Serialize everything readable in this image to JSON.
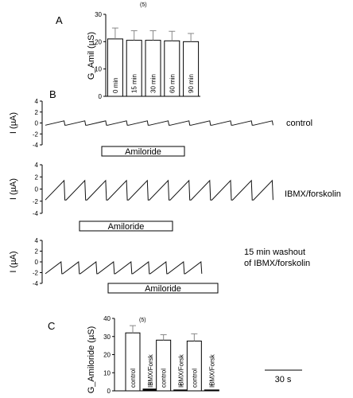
{
  "panels": {
    "a": "A",
    "b": "B",
    "c": "C"
  },
  "chart_data": [
    {
      "id": "A",
      "type": "bar",
      "ylabel": "G_Amil (µS)",
      "ylim": [
        0,
        30
      ],
      "yticks": [
        0,
        10,
        20,
        30
      ],
      "n_label": "(5)",
      "categories": [
        "0 min",
        "15 min",
        "30 min",
        "60 min",
        "90 min"
      ],
      "values": [
        21,
        20.5,
        20.5,
        20.3,
        20
      ],
      "errors": [
        4,
        3.5,
        3.5,
        3.5,
        3
      ]
    },
    {
      "id": "B",
      "type": "line",
      "ylabel": "I (µA)",
      "ylim": [
        -4,
        4
      ],
      "yticks": [
        -4,
        -2,
        0,
        2,
        4
      ],
      "scale_bar": "30 s",
      "traces": [
        {
          "condition": "control",
          "amiloride_label": "Amiloride",
          "pulse_amp": 0.8,
          "base": -0.4,
          "cycles": 11
        },
        {
          "condition": "IBMX/forskolin",
          "amiloride_label": "Amiloride",
          "pulse_amp": 3.2,
          "base": -1.8,
          "cycles": 11
        },
        {
          "condition": "15 min washout of IBMX/forskolin",
          "amiloride_label": "Amiloride",
          "pulse_amp": 2.2,
          "base": -2.2,
          "cycles": 9
        }
      ]
    },
    {
      "id": "C",
      "type": "bar",
      "ylabel": "G_Amiloride (µS)",
      "ylim": [
        0,
        40
      ],
      "yticks": [
        0,
        10,
        20,
        30,
        40
      ],
      "n_label": "(5)",
      "series": [
        {
          "name": "control",
          "values": [
            32,
            28,
            27.5
          ],
          "errors": [
            4,
            3,
            4
          ],
          "fill": "#ffffff"
        },
        {
          "name": "IBMX/Forsk",
          "values": [
            1,
            0.5,
            0.5
          ],
          "marker": "*",
          "fill": "#000000"
        }
      ]
    }
  ]
}
